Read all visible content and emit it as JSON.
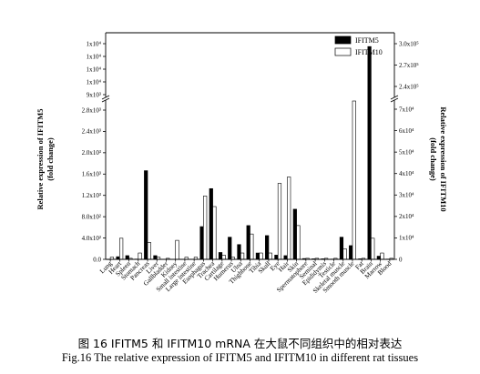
{
  "chart_data": {
    "type": "bar",
    "categories": [
      "Lung",
      "Heart",
      "Spleen",
      "Stomach",
      "Pancreas",
      "Liver",
      "Gallbladder",
      "Kidney",
      "Small intestine",
      "Large intestine",
      "Esophagus",
      "Trachea",
      "Cartilage",
      "Humerus",
      "Ulna",
      "Thighbone",
      "Tibia",
      "Skull",
      "Eye",
      "Hair",
      "Skin",
      "Spermatophore",
      "Seminal",
      "Epididymis",
      "Testicle",
      "Skeletal muscle",
      "Smooth muscle",
      "Fat",
      "Brain",
      "Marrow",
      "Blood"
    ],
    "series": [
      {
        "name": "IFITM5",
        "axis": "left",
        "color": "#000000",
        "values": [
          0.05,
          5,
          7,
          0.5,
          168,
          7,
          0.3,
          0.3,
          0.3,
          0.3,
          62,
          134,
          13,
          42,
          28,
          64,
          12,
          45,
          8,
          7,
          95,
          1.5,
          1,
          1,
          0.5,
          42,
          26,
          1,
          13700,
          6,
          0.5
        ]
      },
      {
        "name": "IFITM10",
        "axis": "right",
        "color": "#ffffff",
        "values": [
          1000,
          10000,
          500,
          3000,
          8000,
          1000,
          500,
          9000,
          1000,
          1000,
          30000,
          25000,
          2000,
          1000,
          3000,
          12000,
          3000,
          3000,
          36000,
          39000,
          16000,
          500,
          500,
          500,
          500,
          5000,
          90000,
          500,
          10000,
          3000,
          500
        ]
      }
    ],
    "y_left": {
      "label_line1": "Relative expression of IFITM5",
      "label_line2": "(fold change)",
      "lower_range": [
        0,
        300
      ],
      "lower_ticks": [
        "0.0",
        "4.0x10²",
        "8.0x10²",
        "1.2x10³",
        "1.6x10³",
        "2.0x10³",
        "2.4x10³",
        "2.8x10³"
      ],
      "upper_range": [
        9000,
        15000
      ],
      "upper_ticks": [
        "9x10³",
        "1x10⁴",
        "1x10⁴",
        "1x10⁴",
        "1x10⁴"
      ]
    },
    "y_right": {
      "label_line1": "Relative expression of IFITM10",
      "label_line2": "(fold change)",
      "lower_range": [
        0,
        75000
      ],
      "lower_ticks": [
        "0",
        "1x10⁴",
        "2x10⁴",
        "3x10⁴",
        "4x10⁴",
        "5x10⁴",
        "6x10⁴",
        "7x10⁴"
      ],
      "upper_range": [
        230000,
        305000
      ],
      "upper_ticks": [
        "2.4x10⁵",
        "2.7x10⁵",
        "3.0x10⁵"
      ]
    },
    "legend": {
      "placement": "top-right",
      "entries": [
        "IFITM5",
        "IFITM10"
      ]
    }
  },
  "captions": {
    "chinese": "图  16 IFITM5 和 IFITM10 mRNA 在大鼠不同组织中的相对表达",
    "english": "Fig.16 The relative expression of IFITM5 and IFITM10 in different rat tissues"
  }
}
